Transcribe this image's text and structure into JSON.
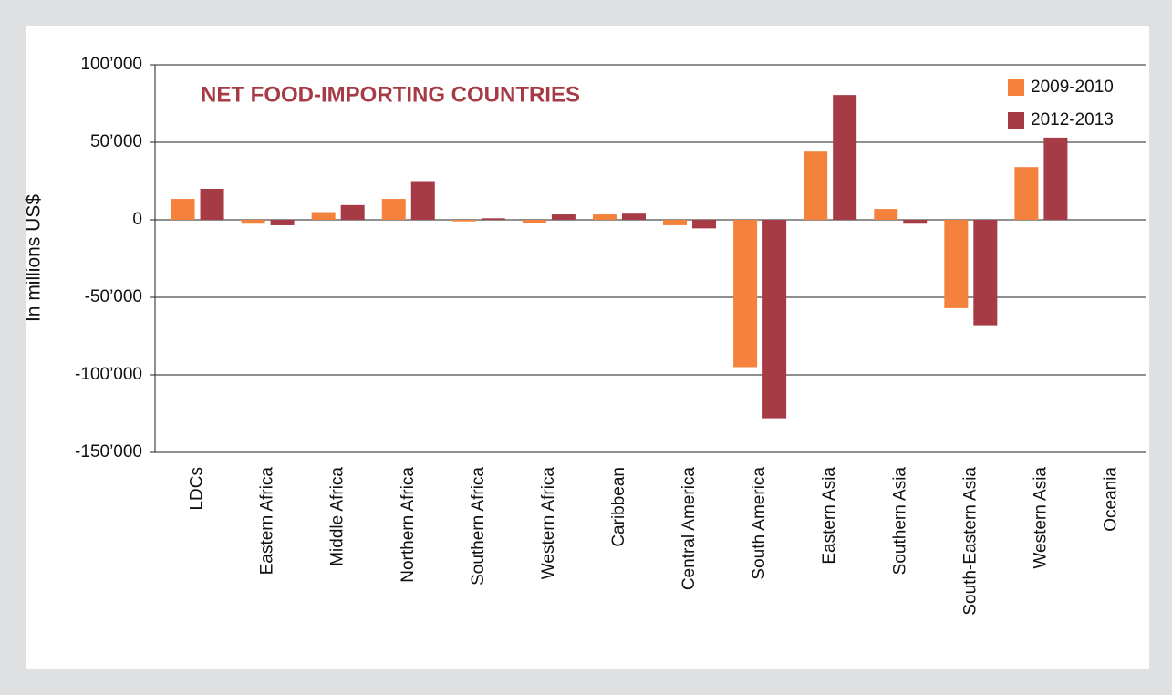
{
  "chart_data": {
    "type": "bar",
    "title": "NET FOOD-IMPORTING COUNTRIES",
    "y_label": "In millions US$",
    "categories": [
      "LDCs",
      "Eastern Africa",
      "Middle Africa",
      "Northern Africa",
      "Southern Africa",
      "Western Africa",
      "Caribbean",
      "Central America",
      "South America",
      "Eastern Asia",
      "Southern Asia",
      "South-Eastern Asia",
      "Western Asia",
      "Oceania"
    ],
    "series": [
      {
        "name": "2009-2010",
        "color": "#f4823c",
        "values": [
          13500,
          -2500,
          5000,
          13500,
          -1000,
          -2000,
          3500,
          -3500,
          -95000,
          44000,
          7000,
          -57000,
          34000,
          null
        ]
      },
      {
        "name": "2012-2013",
        "color": "#a63a45",
        "values": [
          20000,
          -3500,
          9500,
          25000,
          1000,
          3500,
          4000,
          -5500,
          -128000,
          80500,
          -2500,
          -68000,
          53000,
          null
        ]
      }
    ],
    "ylim": [
      -150000,
      100000
    ],
    "yticks": [
      {
        "value": -150000,
        "label": "-150’000"
      },
      {
        "value": -100000,
        "label": "-100’000"
      },
      {
        "value": -50000,
        "label": "-50’000"
      },
      0,
      {
        "value": 50000,
        "label": "50’000"
      },
      {
        "value": 100000,
        "label": "100’000"
      }
    ],
    "grid": true,
    "legend": "top-right",
    "title_color": "#a63a45"
  }
}
